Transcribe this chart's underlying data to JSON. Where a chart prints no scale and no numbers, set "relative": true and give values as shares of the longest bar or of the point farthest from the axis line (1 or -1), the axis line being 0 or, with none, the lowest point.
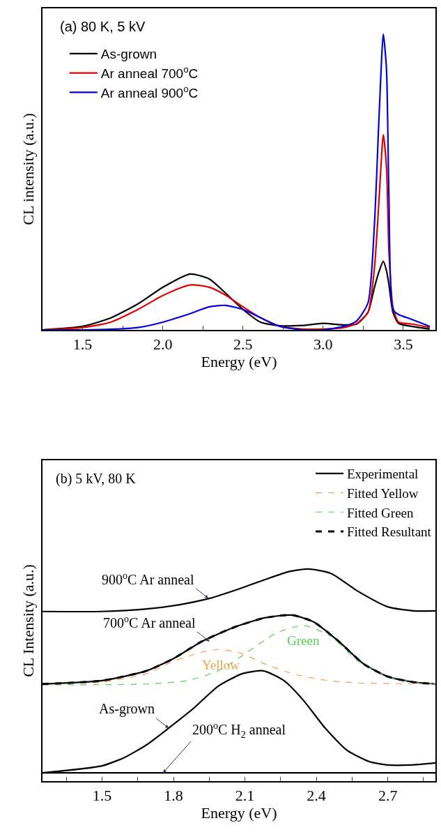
{
  "chart_data": [
    {
      "type": "line",
      "relative": true,
      "xlabel": "Energy (eV)",
      "ylabel": "CL intensity (a.u.)",
      "xlim": [
        1.25,
        3.7
      ],
      "xticks": [
        1.5,
        {
          "value": 1.75,
          "label": null
        },
        {
          "value": 2.0,
          "label": "2.0"
        },
        {
          "value": 2.25,
          "label": null
        },
        2.5,
        {
          "value": 2.75,
          "label": null
        },
        {
          "value": 3.0,
          "label": "3.0"
        },
        {
          "value": 3.25,
          "label": null
        },
        3.5
      ],
      "legend": "top left",
      "annotations": [
        "(a) 80 K, 5 kV"
      ],
      "x": [
        1.25,
        1.5,
        1.674,
        1.845,
        2.0,
        2.17,
        2.29,
        2.39,
        2.5,
        2.61,
        2.73,
        2.87,
        3.0,
        3.13,
        3.21,
        3.28,
        3.32,
        3.35,
        3.375,
        3.395,
        3.41,
        3.435,
        3.47,
        3.55,
        3.665
      ],
      "series": [
        {
          "name": "As-grown",
          "color": "#000000",
          "line_style": "solid",
          "x": [
            1.25,
            1.5,
            1.674,
            1.845,
            2.0,
            2.17,
            2.29,
            2.39,
            2.5,
            2.61,
            2.73,
            2.87,
            3.0,
            3.13,
            3.21,
            3.28,
            3.32,
            3.35,
            3.375,
            3.395,
            3.41,
            3.435,
            3.47,
            3.55,
            3.665
          ],
          "values": [
            0.0,
            0.012,
            0.04,
            0.088,
            0.144,
            0.189,
            0.172,
            0.125,
            0.069,
            0.026,
            0.014,
            0.015,
            0.022,
            0.017,
            0.02,
            0.06,
            0.144,
            0.2,
            0.232,
            0.2,
            0.154,
            0.06,
            0.022,
            0.012,
            0.003
          ]
        },
        {
          "name": "Ar anneal 700$^{o}$C",
          "color": "#e00000",
          "line_style": "solid",
          "values": [
            0.0,
            0.008,
            0.026,
            0.069,
            0.116,
            0.152,
            0.144,
            0.118,
            0.078,
            0.041,
            0.012,
            0.003,
            0.003,
            0.008,
            0.022,
            0.06,
            0.21,
            0.455,
            0.66,
            0.55,
            0.267,
            0.078,
            0.026,
            0.02,
            0.008
          ]
        },
        {
          "name": "Ar anneal 900$^{o}$C",
          "color": "#0000e0",
          "line_style": "solid",
          "values": [
            0.0,
            0.0,
            0.002,
            0.008,
            0.026,
            0.055,
            0.078,
            0.083,
            0.069,
            0.041,
            0.012,
            0.0,
            0.0,
            0.012,
            0.031,
            0.092,
            0.36,
            0.74,
            1.0,
            0.88,
            0.455,
            0.069,
            0.052,
            0.036,
            0.012
          ]
        }
      ]
    },
    {
      "type": "line",
      "relative": true,
      "xlabel": "Energy (eV)",
      "ylabel": "CL Intensity (a.u.)",
      "xlim": [
        1.25,
        2.9
      ],
      "xticks": [
        {
          "value": 1.35,
          "label": null
        },
        1.5,
        {
          "value": 1.65,
          "label": null
        },
        1.8,
        {
          "value": 1.95,
          "label": null
        },
        2.1,
        {
          "value": 2.25,
          "label": null
        },
        2.4,
        {
          "value": 2.55,
          "label": null
        },
        2.7,
        {
          "value": 2.85,
          "label": null
        }
      ],
      "legend": "top right",
      "annotations": [
        "(b) 5 kV, 80 K",
        {
          "text": "900$^{o}$C Ar anneal",
          "x": 1.947,
          "y": 0.862
        },
        {
          "text": "700$^{o}$C Ar anneal",
          "x": 1.952,
          "y": 0.658
        },
        {
          "text": "As-grown",
          "x": 1.78,
          "y": 0.25
        },
        {
          "text": "200$^{o}$C H$_{2}$ anneal",
          "x": 1.756,
          "y": 0.039
        },
        "Yellow",
        "Green"
      ],
      "series": [
        {
          "name": "Experimental",
          "color": "#000000",
          "line_style": "solid",
          "x": [
            1.25,
            1.5,
            1.687,
            1.802,
            1.918,
            2.056,
            2.183,
            2.298,
            2.39,
            2.495,
            2.598,
            2.7,
            2.806,
            2.9
          ],
          "values": [
            0.458,
            0.474,
            0.52,
            0.579,
            0.658,
            0.726,
            0.77,
            0.783,
            0.75,
            0.658,
            0.553,
            0.493,
            0.467,
            0.458
          ]
        },
        {
          "name": "Fitted Yellow",
          "color": "#f0a050",
          "line_style": "dashed",
          "x": [
            1.25,
            1.5,
            1.687,
            1.802,
            1.918,
            1.998,
            2.079,
            2.183,
            2.298,
            2.437,
            2.575,
            2.9
          ],
          "values": [
            0.461,
            0.467,
            0.507,
            0.566,
            0.608,
            0.621,
            0.605,
            0.553,
            0.507,
            0.476,
            0.463,
            0.458
          ]
        },
        {
          "name": "Fitted Green",
          "color": "#55d055",
          "line_style": "dashed",
          "x": [
            1.25,
            1.687,
            1.86,
            1.987,
            2.09,
            2.229,
            2.345,
            2.46,
            2.575,
            2.7,
            2.806,
            2.9
          ],
          "values": [
            0.454,
            0.458,
            0.474,
            0.52,
            0.592,
            0.697,
            0.734,
            0.684,
            0.566,
            0.493,
            0.467,
            0.458
          ]
        },
        {
          "name": "Fitted Resultant",
          "color": "#000000",
          "line_style": "dashed",
          "x": [
            1.25,
            1.5,
            1.687,
            1.802,
            1.918,
            2.056,
            2.183,
            2.298,
            2.39,
            2.495,
            2.598,
            2.7,
            2.806,
            2.9
          ],
          "values": [
            0.458,
            0.474,
            0.52,
            0.579,
            0.658,
            0.726,
            0.77,
            0.783,
            0.75,
            0.658,
            0.553,
            0.493,
            0.467,
            0.458
          ]
        },
        {
          "color": "#000000",
          "line_style": "solid",
          "x": [
            1.25,
            1.5,
            1.687,
            1.825,
            1.952,
            2.079,
            2.183,
            2.287,
            2.368,
            2.46,
            2.575,
            2.7,
            2.806,
            2.9
          ],
          "values": [
            0.8,
            0.8,
            0.812,
            0.832,
            0.862,
            0.908,
            0.95,
            0.989,
            1.0,
            0.98,
            0.895,
            0.822,
            0.803,
            0.803
          ]
        },
        {
          "color": "#000000",
          "line_style": "solid",
          "x": [
            1.25,
            1.5,
            1.595,
            1.687,
            1.78,
            1.883,
            1.987,
            2.09,
            2.177,
            2.264,
            2.345,
            2.437,
            2.529,
            2.622,
            2.7,
            2.795,
            2.9
          ],
          "values": [
            0.039,
            0.072,
            0.112,
            0.171,
            0.25,
            0.342,
            0.447,
            0.507,
            0.52,
            0.474,
            0.382,
            0.25,
            0.145,
            0.092,
            0.076,
            0.076,
            0.086
          ]
        },
        {
          "color": "#000000",
          "line_style": "solid",
          "x": [
            1.25,
            2.9
          ],
          "values": [
            0.039,
            0.039
          ]
        }
      ]
    }
  ]
}
